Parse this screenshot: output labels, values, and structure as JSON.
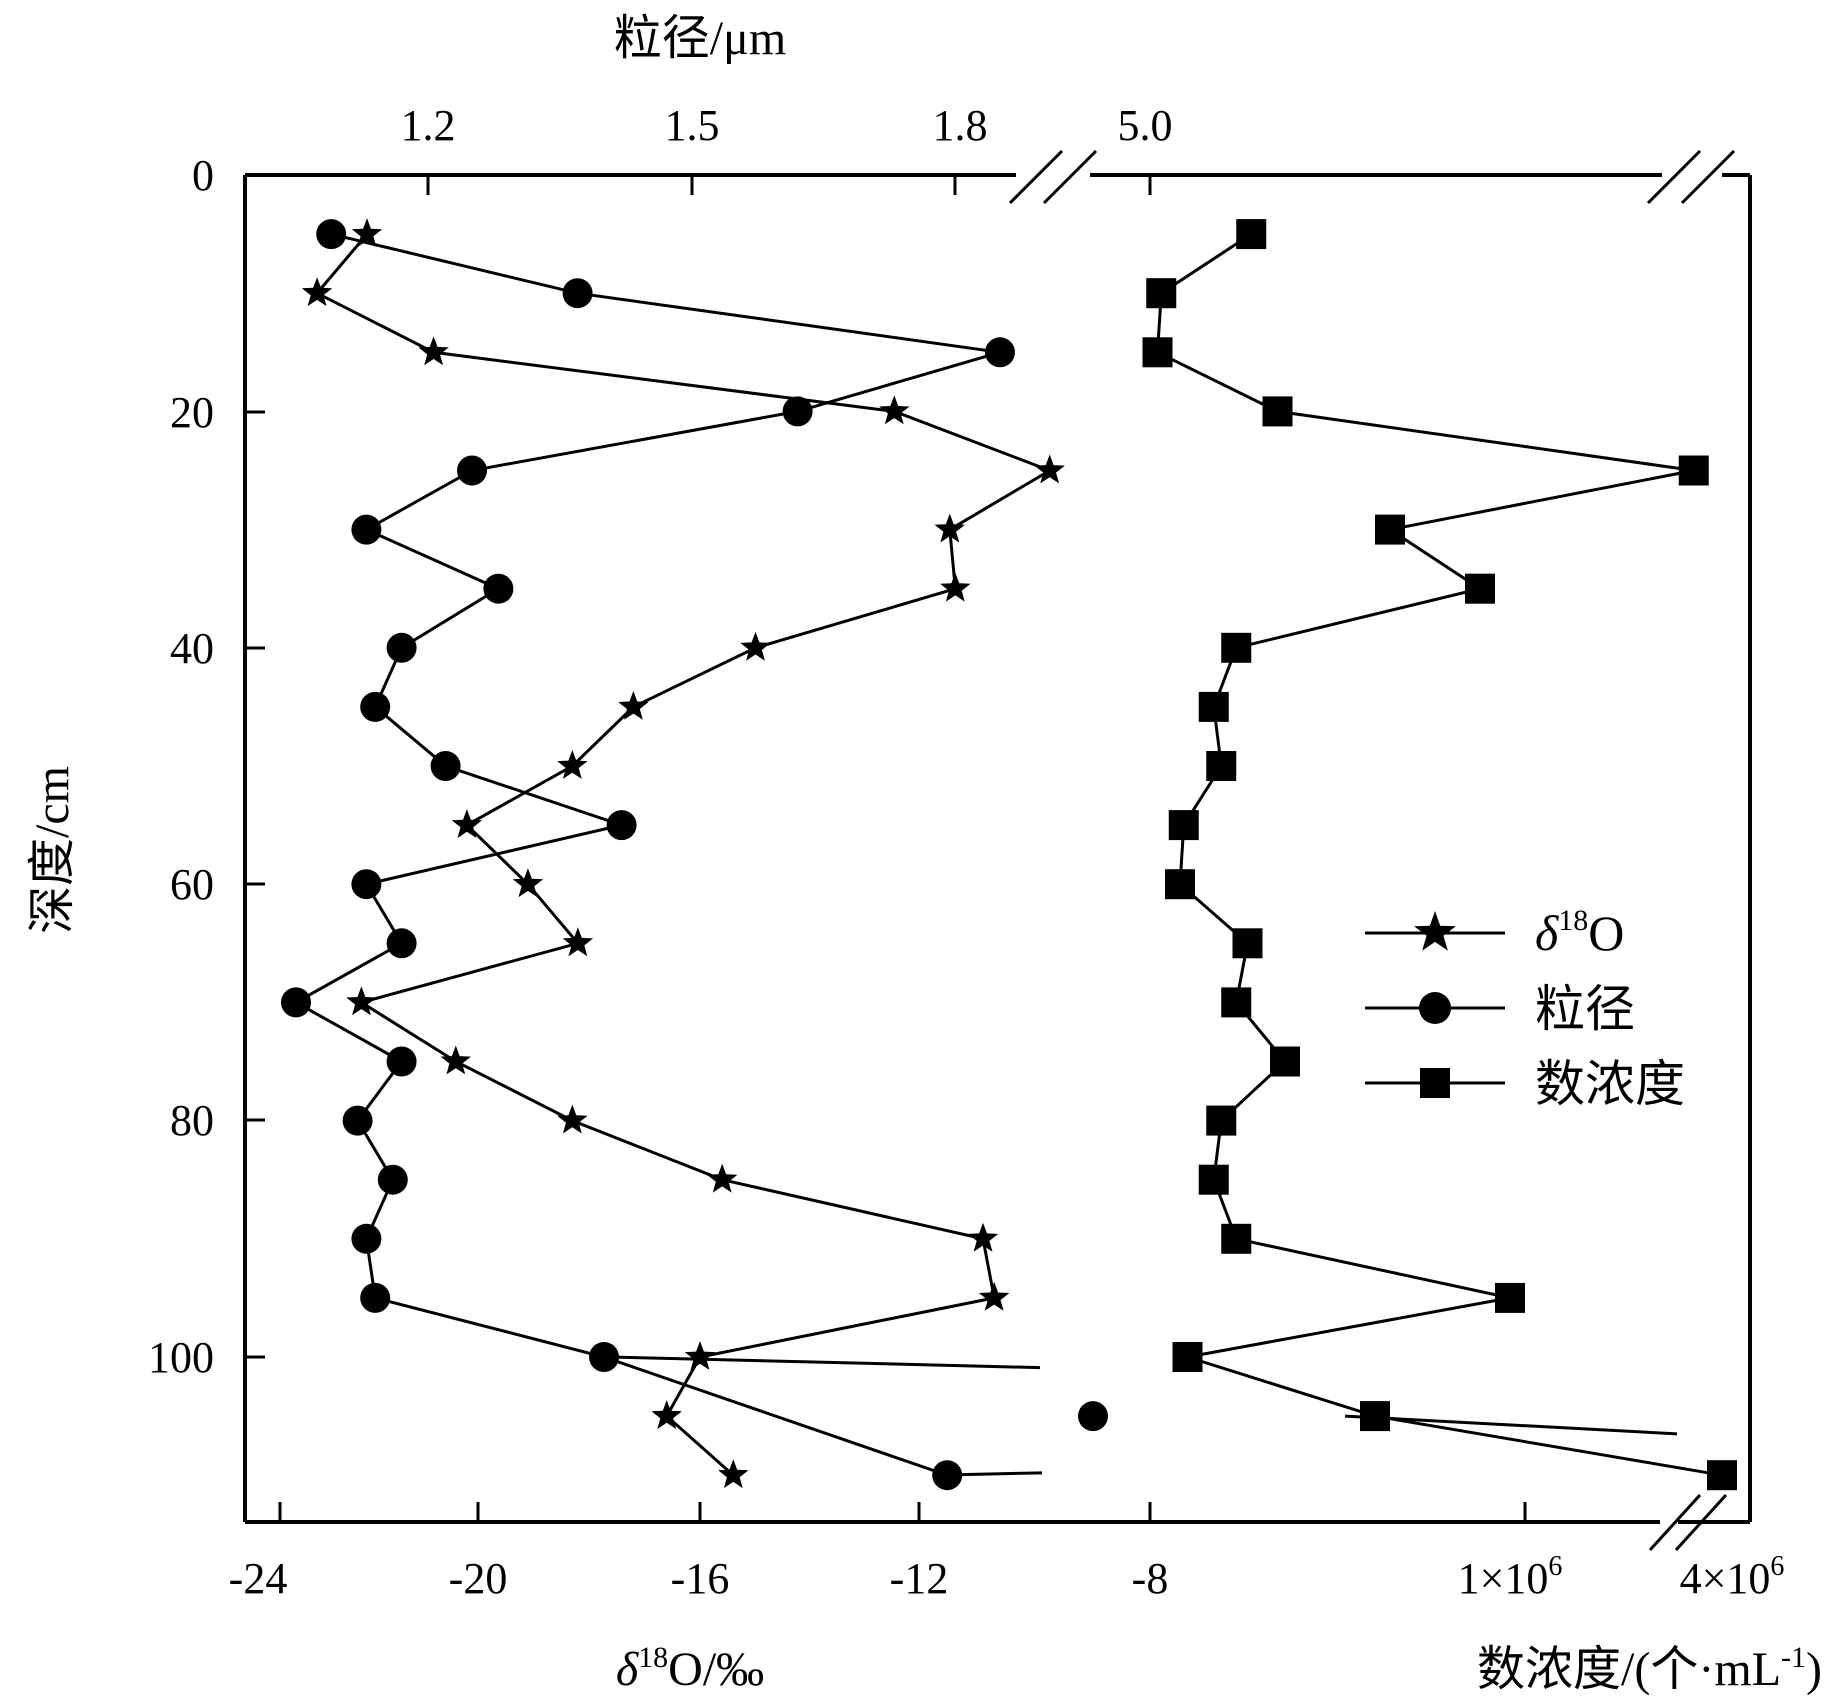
{
  "chart_data": {
    "type": "line",
    "axes": {
      "left": {
        "label": "深度/cm",
        "ticks": [
          "0",
          "20",
          "40",
          "60",
          "80",
          "100"
        ],
        "range": [
          0,
          115
        ],
        "inverted": true
      },
      "bottom": {
        "label_main": "δ",
        "label_sup": "18",
        "label_rest": "O/‰",
        "ticks": [
          "-24",
          "-20",
          "-16",
          "-12",
          "-8"
        ],
        "range": [
          -24.6,
          -8.8
        ]
      },
      "top": {
        "label": "粒径/μm",
        "ticks": [
          "1.2",
          "1.5",
          "1.8",
          "5.0"
        ]
      },
      "bottom_right": {
        "label_main": "数浓度/(个·mL",
        "label_sup": "-1",
        "label_end": ")",
        "tick1_main": "1×10",
        "tick1_sup": "6",
        "tick2_main": "4×10",
        "tick2_sup": "6"
      }
    },
    "legend": {
      "position": "right-middle",
      "items": [
        {
          "key": "d18o",
          "label_main": "δ",
          "label_sup": "18",
          "label_rest": "O",
          "marker": "star"
        },
        {
          "key": "grain",
          "label_main": "粒径",
          "label_sup": "",
          "label_rest": "",
          "marker": "circle"
        },
        {
          "key": "conc",
          "label_main": "数浓度",
          "label_sup": "",
          "label_rest": "",
          "marker": "square"
        }
      ]
    },
    "series": [
      {
        "key": "d18o",
        "name": "δ18O",
        "unit": "‰",
        "marker": "star",
        "depth": [
          5,
          10,
          15,
          20,
          25,
          30,
          35,
          40,
          45,
          50,
          55,
          60,
          65,
          70,
          75,
          80,
          85,
          90,
          95,
          100,
          105,
          110
        ],
        "values": [
          -22.0,
          -22.9,
          -20.8,
          -12.5,
          -9.7,
          -11.5,
          -11.4,
          -15.0,
          -17.2,
          -18.3,
          -20.2,
          -19.1,
          -18.2,
          -22.1,
          -20.4,
          -18.3,
          -15.6,
          -10.9,
          -10.7,
          -16.0,
          -16.6,
          -15.4
        ]
      },
      {
        "key": "grain",
        "name": "粒径",
        "unit": "μm",
        "marker": "circle",
        "depth": [
          5,
          10,
          15,
          20,
          25,
          30,
          35,
          40,
          45,
          50,
          55,
          60,
          65,
          70,
          75,
          80,
          85,
          90,
          95,
          100,
          105,
          110
        ],
        "values": [
          1.09,
          1.37,
          1.85,
          1.62,
          1.25,
          1.13,
          1.28,
          1.17,
          1.14,
          1.22,
          1.42,
          1.13,
          1.17,
          1.05,
          1.17,
          1.12,
          1.16,
          1.13,
          1.14,
          1.4,
          null,
          1.79
        ],
        "offscale": [
          {
            "depth": 105,
            "note": "marker plotted at x≈4.93 on the 5.0 segment"
          }
        ]
      },
      {
        "key": "conc",
        "name": "数浓度",
        "unit": "个·mL-1",
        "marker": "square",
        "depth": [
          5,
          10,
          15,
          20,
          25,
          30,
          35,
          40,
          45,
          50,
          55,
          60,
          65,
          70,
          75,
          80,
          85,
          90,
          95,
          100,
          105,
          110
        ],
        "values": [
          270000,
          30000,
          20000,
          340000,
          1450000,
          640000,
          880000,
          230000,
          170000,
          190000,
          90000,
          80000,
          260000,
          230000,
          360000,
          190000,
          170000,
          230000,
          960000,
          100000,
          600000,
          4000000
        ]
      }
    ]
  }
}
